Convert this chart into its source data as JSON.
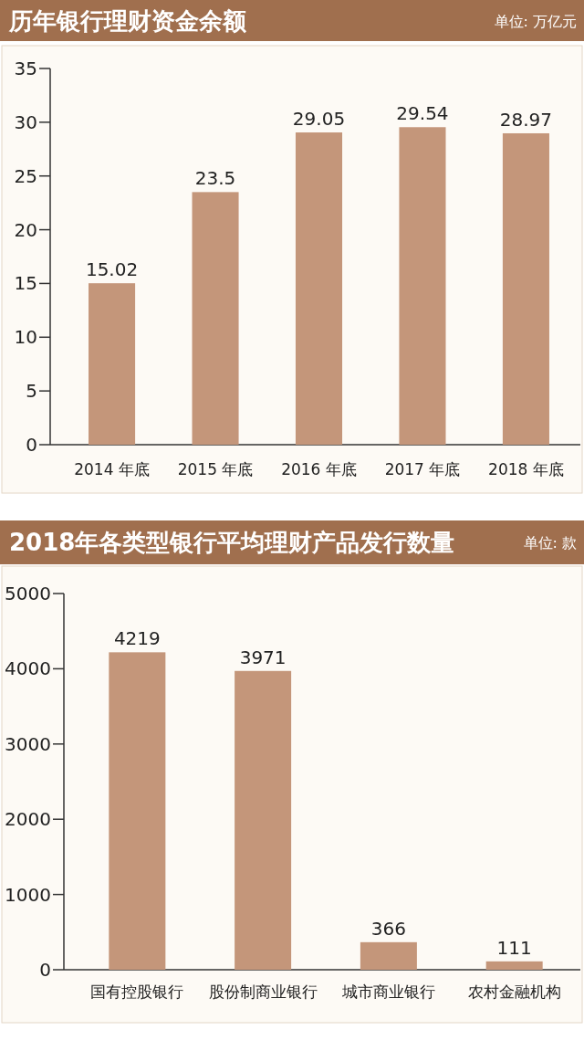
{
  "chart_data": [
    {
      "type": "bar",
      "title": "历年银行理财资金余额",
      "subtitle": "单位: 万亿元",
      "categories": [
        "2014 年底",
        "2015 年底",
        "2016 年底",
        "2017 年底",
        "2018 年底"
      ],
      "values": [
        15.02,
        23.5,
        29.05,
        29.54,
        28.97
      ],
      "color": "#c4967a",
      "ylim": [
        0,
        35
      ],
      "yticks": [
        0,
        5,
        10,
        15,
        20,
        25,
        30,
        35
      ],
      "data_labels": true
    },
    {
      "type": "bar",
      "title": "2018年各类型银行平均理财产品发行数量",
      "subtitle": "单位: 款",
      "categories": [
        "国有控股银行",
        "股份制商业银行",
        "城市商业银行",
        "农村金融机构"
      ],
      "values": [
        4219,
        3971,
        366,
        111
      ],
      "color": "#c4967a",
      "ylim": [
        0,
        5000
      ],
      "yticks": [
        0,
        1000,
        2000,
        3000,
        4000,
        5000
      ],
      "data_labels": true
    }
  ]
}
